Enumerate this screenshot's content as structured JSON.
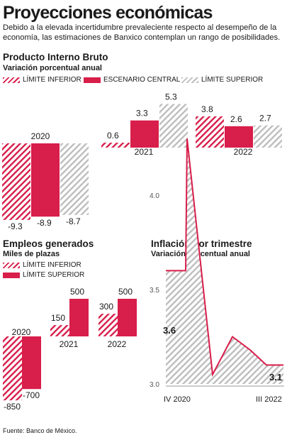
{
  "title": "Proyecciones económicas",
  "subtitle": "Debido a la elevada incertidumbre prevaleciente respecto al desempeño de la economía, las estimaciones de Banxico contemplan un rango de posibilidades.",
  "source": "Fuente: Banco de México.",
  "colors": {
    "red": "#d81e4a",
    "gray": "#bdbdbd",
    "text": "#1a1a1a"
  },
  "pib": {
    "title": "Producto Interno Bruto",
    "subtitle": "Variación porcentual anual",
    "legend": [
      "LÍMITE INFERIOR",
      "ESCENARIO CENTRAL",
      "LÍMITE SUPERIOR"
    ]
  },
  "empleos": {
    "title": "Empleos generados",
    "subtitle": "Miles de plazas",
    "legend": [
      "LÍMITE INFERIOR",
      "LÍMITE SUPERIOR"
    ]
  },
  "inflacion": {
    "title": "Inflación por trimestre",
    "subtitle": "Variación porcentual anual"
  },
  "chart_data": [
    {
      "type": "bar",
      "title": "Producto Interno Bruto",
      "subtitle": "Variación porcentual anual",
      "categories": [
        "2020",
        "2021",
        "2022"
      ],
      "series": [
        {
          "name": "LÍMITE INFERIOR",
          "values": [
            -9.3,
            0.6,
            3.8
          ],
          "labels": [
            "-9.3",
            "0.6",
            "3.8"
          ]
        },
        {
          "name": "ESCENARIO CENTRAL",
          "values": [
            -8.9,
            3.3,
            2.6
          ],
          "labels": [
            "-8.9",
            "3.3",
            "2.6"
          ]
        },
        {
          "name": "LÍMITE SUPERIOR",
          "values": [
            -8.7,
            5.3,
            2.7
          ],
          "labels": [
            "-8.7",
            "5.3",
            "2.7"
          ]
        }
      ]
    },
    {
      "type": "bar",
      "title": "Empleos generados",
      "subtitle": "Miles de plazas",
      "categories": [
        "2020",
        "2021",
        "2022"
      ],
      "series": [
        {
          "name": "LÍMITE INFERIOR",
          "values": [
            -850,
            150,
            300
          ],
          "labels": [
            "-850",
            "150",
            "300"
          ]
        },
        {
          "name": "LÍMITE SUPERIOR",
          "values": [
            -700,
            500,
            500
          ],
          "labels": [
            "-700",
            "500",
            "500"
          ]
        }
      ]
    },
    {
      "type": "area",
      "title": "Inflación por trimestre",
      "subtitle": "Variación porcentual anual",
      "yticks": [
        "3.0",
        "3.5",
        "4.0"
      ],
      "ylim": [
        3.0,
        4.0
      ],
      "xticks": [
        "IV 2020",
        "III 2022"
      ],
      "values": [
        3.6,
        3.6,
        4.3,
        3.05,
        3.25,
        3.18,
        3.1,
        3.1
      ],
      "annotations": [
        "3.6",
        "3.1"
      ]
    }
  ]
}
